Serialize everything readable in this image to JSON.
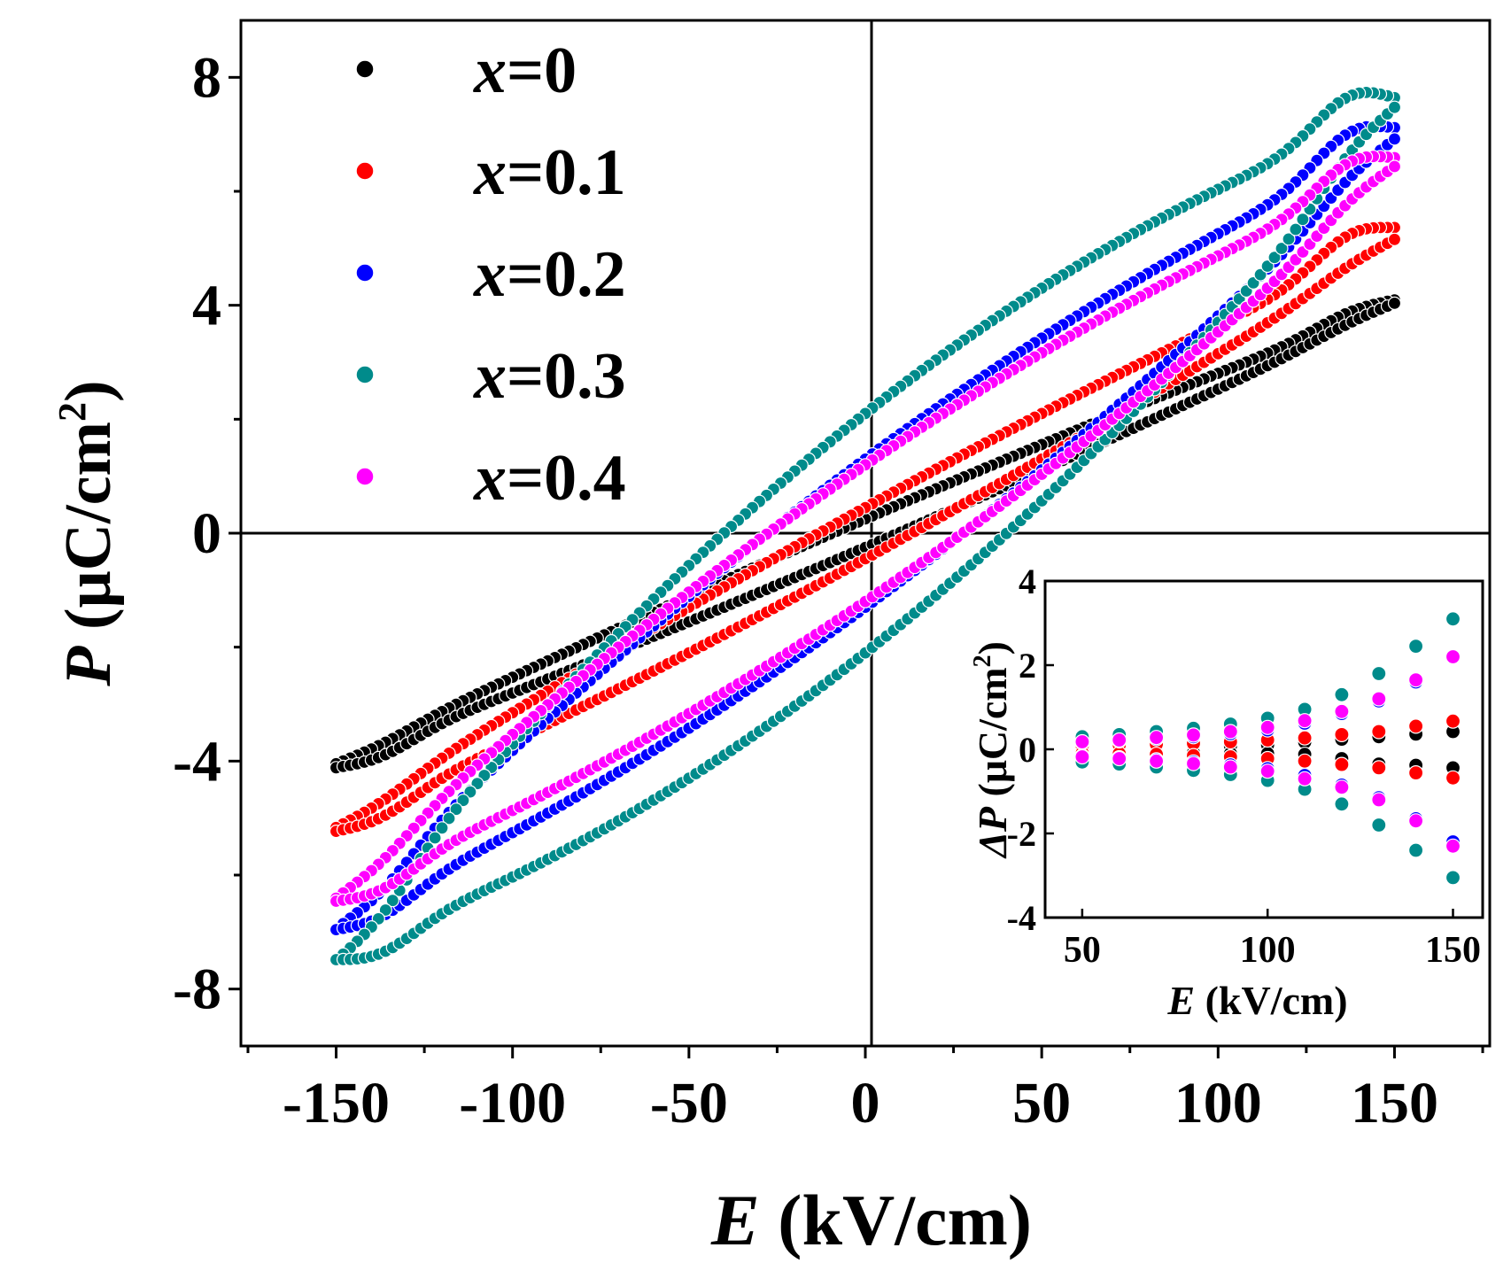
{
  "colors": {
    "x0": "#000000",
    "x01": "#ff0000",
    "x02": "#0000ff",
    "x03": "#008b8b",
    "x04": "#ff00ff"
  },
  "chart_data": [
    {
      "type": "scatter",
      "role": "main",
      "xlabel_var": "E",
      "xlabel_unit": " (kV/cm)",
      "ylabel_var": "P",
      "ylabel_unit": " (μC/cm",
      "ylabel_sup": "2",
      "ylabel_close": ")",
      "xlim": [
        -177,
        177
      ],
      "ylim": [
        -9,
        9
      ],
      "xticks": [
        -150,
        -100,
        -50,
        0,
        50,
        100,
        150
      ],
      "xtick_labels": [
        "-150",
        "-100",
        "-50",
        "0",
        "50",
        "100",
        "150"
      ],
      "yticks": [
        -8,
        -4,
        0,
        4,
        8
      ],
      "ytick_labels": [
        "-8",
        "-4",
        "0",
        "4",
        "8"
      ],
      "zero_lines": true,
      "legend": {
        "position": "top-left",
        "entries": [
          {
            "var": "x",
            "text": "=0",
            "color_key": "x0"
          },
          {
            "var": "x",
            "text": "=0.1",
            "color_key": "x01"
          },
          {
            "var": "x",
            "text": "=0.2",
            "color_key": "x02"
          },
          {
            "var": "x",
            "text": "=0.3",
            "color_key": "x03"
          },
          {
            "var": "x",
            "text": "=0.4",
            "color_key": "x04"
          }
        ]
      },
      "series": [
        {
          "name": "x=0",
          "color_key": "x0",
          "Emax": 150,
          "Pmax": 4.0,
          "Pr": 0.25,
          "Ec": 10,
          "top_end_bulge": 0.18,
          "bottom_end_bulge": 0.22,
          "neck_top": 0.35,
          "neck_bottom": 0.45
        },
        {
          "name": "x=0.1",
          "color_key": "x01",
          "Emax": 150,
          "Pmax": 5.1,
          "Pr": 0.45,
          "Ec": 17,
          "top_end_bulge": 0.5,
          "bottom_end_bulge": 0.25,
          "neck_top": 0.5,
          "neck_bottom": 0.7
        },
        {
          "name": "x=0.2",
          "color_key": "x02",
          "Emax": 150,
          "Pmax": 6.8,
          "Pr": 1.3,
          "Ec": 28,
          "top_end_bulge": 0.6,
          "bottom_end_bulge": 0.3,
          "neck_top": 1.1,
          "neck_bottom": 1.5
        },
        {
          "name": "x=0.3",
          "color_key": "x03",
          "Emax": 150,
          "Pmax": 7.3,
          "Pr": 2.1,
          "Ec": 45,
          "top_end_bulge": 0.65,
          "bottom_end_bulge": 0.35,
          "neck_top": 1.5,
          "neck_bottom": 2.2
        },
        {
          "name": "x=0.4",
          "color_key": "x04",
          "Emax": 150,
          "Pmax": 6.3,
          "Pr": 1.2,
          "Ec": 25,
          "top_end_bulge": 0.55,
          "bottom_end_bulge": 0.3,
          "neck_top": 0.8,
          "neck_bottom": 1.7
        }
      ]
    },
    {
      "type": "scatter",
      "role": "inset",
      "xlabel_var": "E",
      "xlabel_unit": " (kV/cm)",
      "ylabel_var": "ΔP",
      "ylabel_unit": " (μC/cm",
      "ylabel_sup": "2",
      "ylabel_close": ")",
      "xlim": [
        40,
        158
      ],
      "ylim": [
        -4,
        4
      ],
      "xticks": [
        50,
        100,
        150
      ],
      "xtick_labels": [
        "50",
        "100",
        "150"
      ],
      "yticks": [
        -4,
        -2,
        0,
        2,
        4
      ],
      "ytick_labels": [
        "-4",
        "-2",
        "0",
        "2",
        "4"
      ],
      "x": [
        50,
        60,
        70,
        80,
        90,
        100,
        110,
        120,
        130,
        140,
        150
      ],
      "series": [
        {
          "name": "x=0",
          "color_key": "x0",
          "upper": [
            0.05,
            0.05,
            0.07,
            0.08,
            0.08,
            0.1,
            0.17,
            0.24,
            0.3,
            0.36,
            0.42
          ],
          "lower": [
            -0.05,
            -0.06,
            -0.08,
            -0.08,
            -0.1,
            -0.1,
            -0.12,
            -0.22,
            -0.35,
            -0.38,
            -0.44
          ]
        },
        {
          "name": "x=0.1",
          "color_key": "x01",
          "upper": [
            0.08,
            0.1,
            0.12,
            0.14,
            0.18,
            0.22,
            0.27,
            0.35,
            0.42,
            0.55,
            0.67
          ],
          "lower": [
            -0.09,
            -0.1,
            -0.12,
            -0.15,
            -0.18,
            -0.22,
            -0.28,
            -0.36,
            -0.44,
            -0.56,
            -0.68
          ]
        },
        {
          "name": "x=0.2",
          "color_key": "x02",
          "upper": [
            0.16,
            0.2,
            0.25,
            0.3,
            0.37,
            0.46,
            0.62,
            0.85,
            1.15,
            1.6,
            2.2
          ],
          "lower": [
            -0.16,
            -0.2,
            -0.25,
            -0.3,
            -0.37,
            -0.46,
            -0.62,
            -0.85,
            -1.15,
            -1.65,
            -2.2
          ]
        },
        {
          "name": "x=0.3",
          "color_key": "x03",
          "upper": [
            0.3,
            0.35,
            0.42,
            0.5,
            0.6,
            0.74,
            0.95,
            1.3,
            1.8,
            2.45,
            3.1
          ],
          "lower": [
            -0.3,
            -0.35,
            -0.42,
            -0.5,
            -0.6,
            -0.74,
            -0.95,
            -1.3,
            -1.8,
            -2.4,
            -3.05
          ]
        },
        {
          "name": "x=0.4",
          "color_key": "x04",
          "upper": [
            0.18,
            0.22,
            0.28,
            0.34,
            0.42,
            0.52,
            0.68,
            0.9,
            1.2,
            1.65,
            2.2
          ],
          "lower": [
            -0.18,
            -0.22,
            -0.28,
            -0.34,
            -0.42,
            -0.52,
            -0.7,
            -0.9,
            -1.2,
            -1.7,
            -2.3
          ]
        }
      ]
    }
  ]
}
